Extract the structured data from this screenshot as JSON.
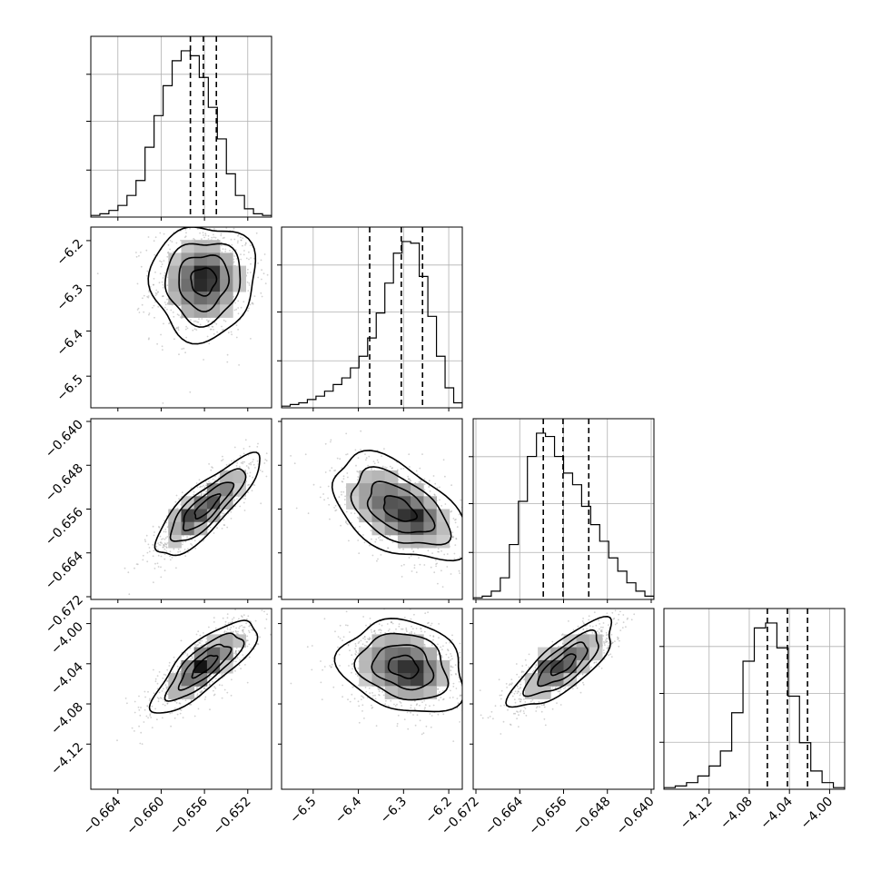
{
  "chart_data": {
    "type": "corner",
    "grid": true,
    "parameters": [
      {
        "range": [
          -0.6665,
          -0.6498
        ],
        "ticks": [
          -0.664,
          -0.66,
          -0.656,
          -0.652
        ],
        "tick_labels": [
          "−0.664",
          "−0.660",
          "−0.656",
          "−0.652"
        ],
        "quantiles": [
          -0.6573,
          -0.6561,
          -0.6549
        ],
        "hist": [
          0.01,
          0.02,
          0.04,
          0.07,
          0.13,
          0.22,
          0.42,
          0.61,
          0.79,
          0.94,
          1.0,
          0.97,
          0.84,
          0.66,
          0.47,
          0.26,
          0.13,
          0.05,
          0.02,
          0.01
        ]
      },
      {
        "range": [
          -6.57,
          -6.17
        ],
        "ticks": [
          -6.5,
          -6.4,
          -6.3,
          -6.2
        ],
        "tick_labels": [
          "−6.5",
          "−6.4",
          "−6.3",
          "−6.2"
        ],
        "quantiles": [
          -6.375,
          -6.305,
          -6.258
        ],
        "hist": [
          0.01,
          0.02,
          0.03,
          0.05,
          0.07,
          0.1,
          0.14,
          0.18,
          0.24,
          0.31,
          0.42,
          0.57,
          0.75,
          0.93,
          1.0,
          0.99,
          0.79,
          0.55,
          0.31,
          0.12,
          0.03
        ]
      },
      {
        "range": [
          -0.6725,
          -0.6395
        ],
        "ticks": [
          -0.672,
          -0.664,
          -0.656,
          -0.648,
          -0.64
        ],
        "tick_labels": [
          "−0.672",
          "−0.664",
          "−0.656",
          "−0.648",
          "−0.640"
        ],
        "tick_labels_y": [
          "−0.672",
          "−0.664",
          "−0.656",
          "−0.648",
          "−0.640"
        ],
        "quantiles": [
          -0.6597,
          -0.6561,
          -0.6514
        ],
        "hist": [
          0.01,
          0.02,
          0.05,
          0.13,
          0.33,
          0.59,
          0.86,
          1.0,
          0.98,
          0.86,
          0.76,
          0.69,
          0.56,
          0.45,
          0.35,
          0.25,
          0.17,
          0.1,
          0.05,
          0.02
        ]
      },
      {
        "range": [
          -4.165,
          -3.985
        ],
        "ticks": [
          -4.12,
          -4.08,
          -4.04,
          -4.0
        ],
        "tick_labels": [
          "−4.12",
          "−4.08",
          "−4.04",
          "−4.00"
        ],
        "quantiles": [
          -4.062,
          -4.042,
          -4.022
        ],
        "hist": [
          0.01,
          0.02,
          0.04,
          0.08,
          0.14,
          0.23,
          0.46,
          0.77,
          0.97,
          1.0,
          0.85,
          0.56,
          0.28,
          0.11,
          0.04,
          0.01
        ]
      }
    ],
    "pairs": [
      {
        "col": 0,
        "row": 1,
        "mean": [
          -0.6561,
          -6.29
        ],
        "sd": [
          0.0021,
          0.055
        ],
        "rho": 0.05,
        "peak": [
          -0.6558,
          -6.28
        ]
      },
      {
        "col": 0,
        "row": 2,
        "mean": [
          -0.6558,
          -0.6555
        ],
        "sd": [
          0.0021,
          0.004
        ],
        "rho": 0.83,
        "peak": [
          -0.6578,
          -0.6575
        ]
      },
      {
        "col": 1,
        "row": 2,
        "mean": [
          -6.31,
          -0.656
        ],
        "sd": [
          0.065,
          0.0042
        ],
        "rho": -0.5,
        "peak": [
          -6.27,
          -0.658
        ]
      },
      {
        "col": 0,
        "row": 3,
        "mean": [
          -0.656,
          -4.042
        ],
        "sd": [
          0.0021,
          0.02
        ],
        "rho": 0.8,
        "peak": [
          -0.6564,
          -4.04
        ]
      },
      {
        "col": 1,
        "row": 3,
        "mean": [
          -6.3,
          -4.043
        ],
        "sd": [
          0.06,
          0.02
        ],
        "rho": -0.2,
        "peak": [
          -6.275,
          -4.05
        ]
      },
      {
        "col": 2,
        "row": 3,
        "mean": [
          -0.656,
          -4.041
        ],
        "sd": [
          0.0041,
          0.019
        ],
        "rho": 0.78,
        "peak": [
          -0.6596,
          -4.04
        ]
      }
    ]
  }
}
